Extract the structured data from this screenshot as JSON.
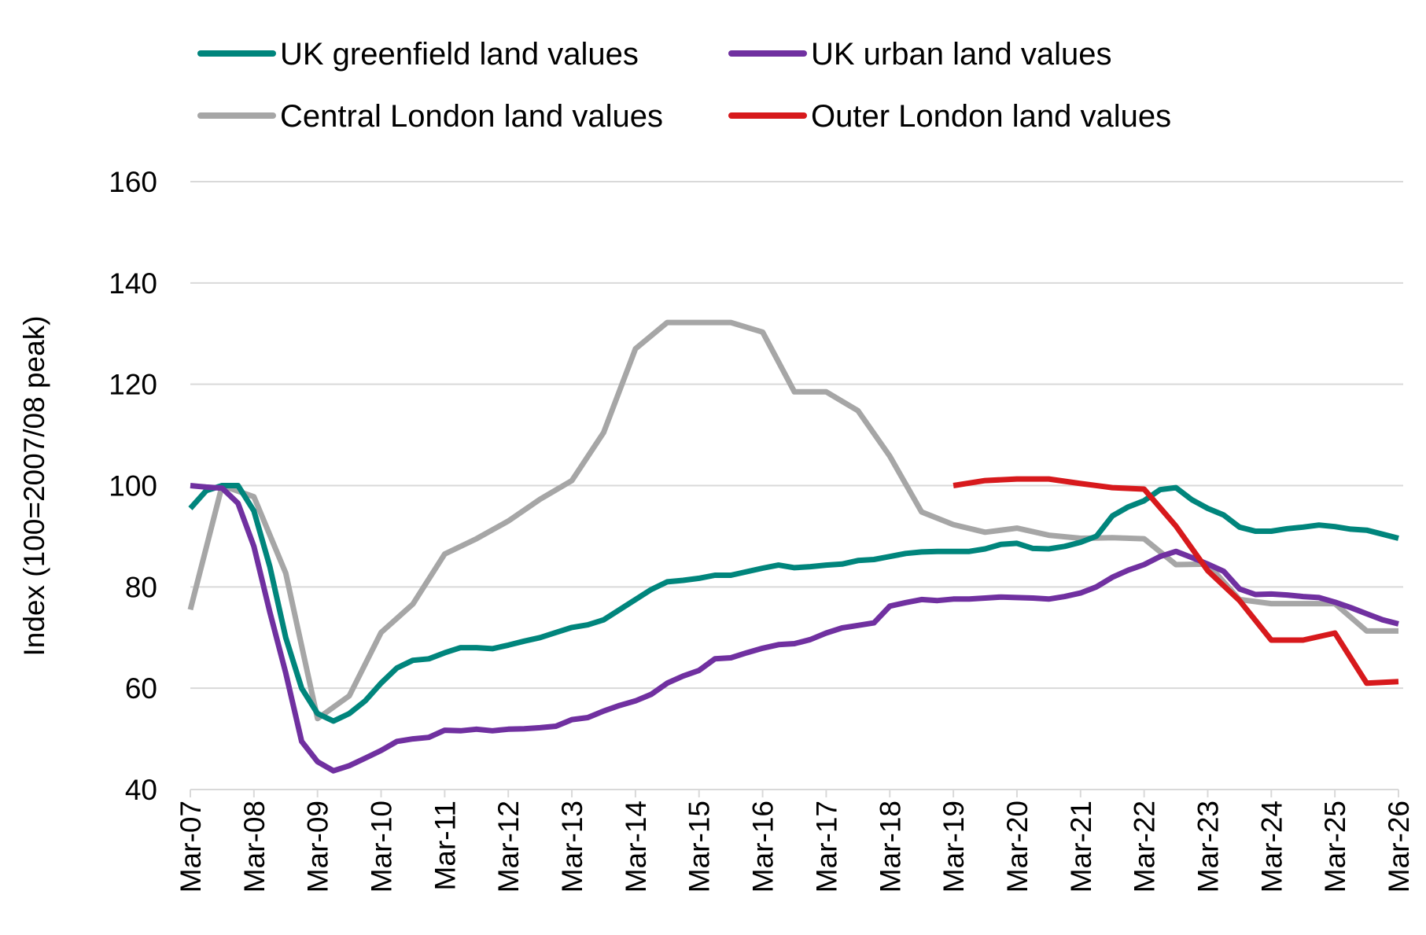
{
  "chart_data": {
    "type": "line",
    "title": "",
    "xlabel": "",
    "ylabel": "Index (100=2007/08 peak)",
    "ylim": [
      40,
      160
    ],
    "yticks": [
      40,
      60,
      80,
      100,
      120,
      140,
      160
    ],
    "xticks": [
      "Mar-07",
      "Mar-08",
      "Mar-09",
      "Mar-10",
      "Mar-11",
      "Mar-12",
      "Mar-13",
      "Mar-14",
      "Mar-15",
      "Mar-16",
      "Mar-17",
      "Mar-18",
      "Mar-19",
      "Mar-20",
      "Mar-21",
      "Mar-22",
      "Mar-23",
      "Mar-24",
      "Mar-25",
      "Mar-26"
    ],
    "grid": "horizontal",
    "legend_position": "top",
    "series": [
      {
        "name": "UK greenfield land values",
        "color": "#00857C",
        "x": [
          "Mar-07",
          "Jun-07",
          "Sep-07",
          "Dec-07",
          "Mar-08",
          "Jun-08",
          "Sep-08",
          "Dec-08",
          "Mar-09",
          "Jun-09",
          "Sep-09",
          "Dec-09",
          "Mar-10",
          "Jun-10",
          "Sep-10",
          "Dec-10",
          "Mar-11",
          "Jun-11",
          "Sep-11",
          "Dec-11",
          "Mar-12",
          "Jun-12",
          "Sep-12",
          "Dec-12",
          "Mar-13",
          "Jun-13",
          "Sep-13",
          "Dec-13",
          "Mar-14",
          "Jun-14",
          "Sep-14",
          "Dec-14",
          "Mar-15",
          "Jun-15",
          "Sep-15",
          "Dec-15",
          "Mar-16",
          "Jun-16",
          "Sep-16",
          "Dec-16",
          "Mar-17",
          "Jun-17",
          "Sep-17",
          "Dec-17",
          "Mar-18",
          "Jun-18",
          "Sep-18",
          "Dec-18",
          "Mar-19",
          "Jun-19",
          "Sep-19",
          "Dec-19",
          "Mar-20",
          "Jun-20",
          "Sep-20",
          "Dec-20",
          "Mar-21",
          "Jun-21",
          "Sep-21",
          "Dec-21",
          "Mar-22",
          "Jun-22",
          "Sep-22",
          "Dec-22",
          "Mar-23",
          "Jun-23",
          "Sep-23",
          "Dec-23",
          "Mar-24",
          "Jun-24",
          "Sep-24",
          "Dec-24",
          "Mar-25",
          "Jun-25",
          "Sep-25",
          "Dec-25",
          "Mar-26"
        ],
        "values": [
          95.5,
          99,
          100,
          100,
          95,
          84,
          70,
          60,
          55,
          53.5,
          55,
          57.5,
          61,
          64,
          65.5,
          65.8,
          67,
          68,
          68,
          67.8,
          68.5,
          69.3,
          70,
          71,
          72,
          72.5,
          73.5,
          75.5,
          77.5,
          79.5,
          81,
          81.3,
          81.7,
          82.3,
          82.3,
          83,
          83.7,
          84.3,
          83.8,
          84,
          84.3,
          84.5,
          85.2,
          85.4,
          86,
          86.6,
          86.9,
          87,
          87,
          87,
          87.5,
          88.4,
          88.6,
          87.6,
          87.5,
          88,
          88.8,
          90,
          94,
          95.8,
          97,
          99.2,
          99.6,
          97.2,
          95.5,
          94.2,
          91.8,
          91,
          91,
          91.5,
          91.8,
          92.2,
          91.9,
          91.4,
          91.2,
          90.4,
          89.6
        ]
      },
      {
        "name": "UK urban land values",
        "color": "#7030A0",
        "x": [
          "Mar-07",
          "Jun-07",
          "Sep-07",
          "Dec-07",
          "Mar-08",
          "Jun-08",
          "Sep-08",
          "Dec-08",
          "Mar-09",
          "Jun-09",
          "Sep-09",
          "Dec-09",
          "Mar-10",
          "Jun-10",
          "Sep-10",
          "Dec-10",
          "Mar-11",
          "Jun-11",
          "Sep-11",
          "Dec-11",
          "Mar-12",
          "Jun-12",
          "Sep-12",
          "Dec-12",
          "Mar-13",
          "Jun-13",
          "Sep-13",
          "Dec-13",
          "Mar-14",
          "Jun-14",
          "Sep-14",
          "Dec-14",
          "Mar-15",
          "Jun-15",
          "Sep-15",
          "Dec-15",
          "Mar-16",
          "Jun-16",
          "Sep-16",
          "Dec-16",
          "Mar-17",
          "Jun-17",
          "Sep-17",
          "Dec-17",
          "Mar-18",
          "Jun-18",
          "Sep-18",
          "Dec-18",
          "Mar-19",
          "Jun-19",
          "Sep-19",
          "Dec-19",
          "Mar-20",
          "Jun-20",
          "Sep-20",
          "Dec-20",
          "Mar-21",
          "Jun-21",
          "Sep-21",
          "Dec-21",
          "Mar-22",
          "Jun-22",
          "Sep-22",
          "Dec-22",
          "Mar-23",
          "Jun-23",
          "Sep-23",
          "Dec-23",
          "Mar-24",
          "Jun-24",
          "Sep-24",
          "Dec-24",
          "Mar-25",
          "Jun-25",
          "Sep-25",
          "Dec-25",
          "Mar-26"
        ],
        "values": [
          100,
          99.7,
          99.5,
          96.5,
          88,
          75,
          63,
          49.5,
          45.5,
          43.7,
          44.7,
          46.2,
          47.7,
          49.5,
          50,
          50.3,
          51.7,
          51.6,
          51.9,
          51.6,
          51.9,
          52,
          52.2,
          52.5,
          53.8,
          54.2,
          55.5,
          56.6,
          57.5,
          58.8,
          61,
          62.4,
          63.5,
          65.8,
          66,
          67,
          67.9,
          68.6,
          68.8,
          69.6,
          70.9,
          71.9,
          72.4,
          72.9,
          76.2,
          76.9,
          77.5,
          77.3,
          77.6,
          77.6,
          77.8,
          78,
          77.9,
          77.8,
          77.6,
          78.1,
          78.8,
          80,
          81.9,
          83.3,
          84.4,
          86,
          87,
          85.8,
          84.5,
          83.1,
          79.6,
          78.5,
          78.6,
          78.4,
          78.1,
          77.9,
          77,
          75.9,
          74.7,
          73.5,
          72.7
        ]
      },
      {
        "name": "Central London land values",
        "color": "#A6A6A6",
        "x": [
          "Mar-07",
          "Sep-07",
          "Mar-08",
          "Sep-08",
          "Mar-09",
          "Sep-09",
          "Mar-10",
          "Sep-10",
          "Mar-11",
          "Sep-11",
          "Mar-12",
          "Sep-12",
          "Mar-13",
          "Sep-13",
          "Mar-14",
          "Sep-14",
          "Mar-15",
          "Sep-15",
          "Mar-16",
          "Sep-16",
          "Mar-17",
          "Sep-17",
          "Mar-18",
          "Sep-18",
          "Mar-19",
          "Sep-19",
          "Mar-20",
          "Sep-20",
          "Mar-21",
          "Sep-21",
          "Mar-22",
          "Sep-22",
          "Mar-23",
          "Sep-23",
          "Mar-24",
          "Sep-24",
          "Mar-25",
          "Sep-25",
          "Mar-26"
        ],
        "values": [
          75.5,
          100,
          97.8,
          82.7,
          54,
          58.5,
          71,
          76.6,
          86.5,
          89.5,
          93,
          97.3,
          101,
          110.5,
          127,
          132.2,
          132.2,
          132.2,
          130.3,
          118.5,
          118.5,
          114.8,
          105.8,
          94.8,
          92.3,
          90.8,
          91.6,
          90.2,
          89.6,
          89.7,
          89.5,
          84.4,
          84.5,
          77.5,
          76.7,
          76.7,
          76.7,
          71.3,
          71.3
        ]
      },
      {
        "name": "Outer London land values",
        "color": "#D7191C",
        "x": [
          "Mar-19",
          "Sep-19",
          "Mar-20",
          "Sep-20",
          "Mar-21",
          "Sep-21",
          "Mar-22",
          "Sep-22",
          "Mar-23",
          "Sep-23",
          "Mar-24",
          "Sep-24",
          "Mar-25",
          "Sep-25",
          "Mar-26"
        ],
        "values": [
          100,
          101,
          101.3,
          101.3,
          100.4,
          99.6,
          99.3,
          92,
          83.2,
          77.3,
          69.5,
          69.5,
          70.9,
          61,
          61.3
        ]
      }
    ]
  }
}
